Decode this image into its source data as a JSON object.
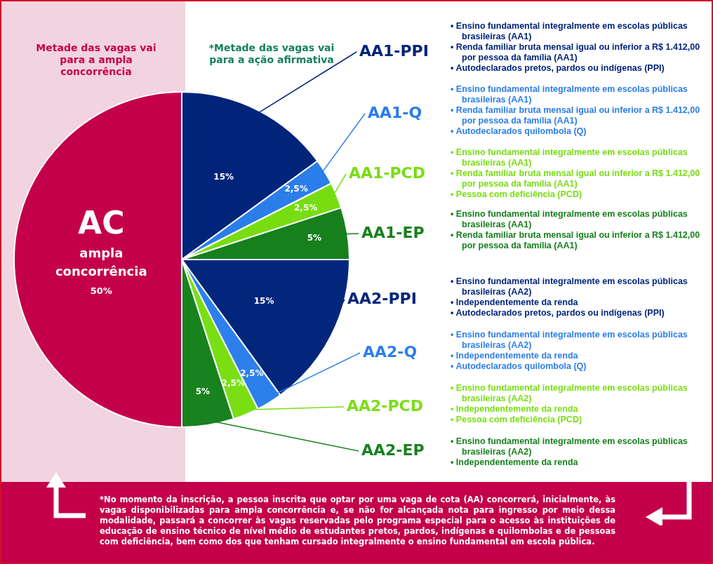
{
  "chart_data": {
    "type": "pie",
    "categories": [
      "AA1-PPI",
      "AA1-Q",
      "AA1-PCD",
      "AA1-EP",
      "AA2-PPI",
      "AA2-Q",
      "AA2-PCD",
      "AA2-EP",
      "AC"
    ],
    "values": [
      15,
      2.5,
      2.5,
      5,
      15,
      2.5,
      2.5,
      5,
      50
    ],
    "colors": [
      "#00247a",
      "#2b7de9",
      "#77dd11",
      "#16801d",
      "#01267c",
      "#2d7feb",
      "#79df13",
      "#18821f",
      "#c4004a"
    ],
    "value_labels": [
      "15%",
      "2,5%",
      "2,5%",
      "5%",
      "15%",
      "2,5%",
      "2,5%",
      "5%",
      "50%"
    ],
    "legend": false,
    "annotations": [
      "Metade das vagas vai para a ampla concorrência",
      "*Metade das vagas vai para a ação afirmativa",
      "ampla concorrência",
      "• Ensino fundamental integralmente em escolas públicas brasileiras (AA1)\n• Renda familiar bruta mensal igual ou inferior a R$ 1.412,00 por pessoa da família (AA1)\n• Autodeclarados pretos, pardos ou indígenas (PPI)",
      "• Ensino fundamental integralmente em escolas públicas brasileiras (AA1)\n• Renda familiar bruta mensal igual ou inferior a R$ 1.412,00 por pessoa da família (AA1)\n• Autodeclarados quilombola (Q)",
      "• Ensino fundamental integralmente em escolas públicas brasileiras (AA1)\n• Renda familiar bruta mensal igual ou inferior a R$ 1.412,00 por pessoa da família (AA1)\n• Pessoa com deficiência (PCD)",
      "• Ensino fundamental integralmente em escolas públicas brasileiras (AA1)\n• Renda familiar bruta mensal igual ou inferior a R$ 1.412,00 por pessoa da família (AA1)",
      "• Ensino fundamental integralmente em escolas públicas brasileiras (AA2)\n• Independentemente da renda\n• Autodeclarados pretos, pardos ou indígenas (PPI)",
      "• Ensino fundamental integralmente em escolas públicas brasileiras (AA2)\n• Independentemente da renda\n• Autodeclarados quilombola (Q)",
      "• Ensino fundamental integralmente em escolas públicas brasileiras (AA2)\n• Independentemente da renda\n• Pessoa com deficiência (PCD)",
      "• Ensino fundamental integralmente em escolas públicas brasileiras (AA2)\n• Independentemente da renda",
      "*No momento da inscrição, a pessoa inscrita que optar por uma vaga de cota (AA) concorrerá, inicialmente, às vagas disponibilizadas para ampla concorrência e, se não for alcançada nota para ingresso por meio dessa modalidade, passará a concorrer às vagas reservadas pelo programa especial para o acesso às instituições de educação de ensino técnico de nível médio de estudantes pretos, pardos, indígenas e quilombolas e de pessoas com deficiência, bem como dos que tenham cursado integralmente o ensino fundamental em escola pública."
    ]
  }
}
